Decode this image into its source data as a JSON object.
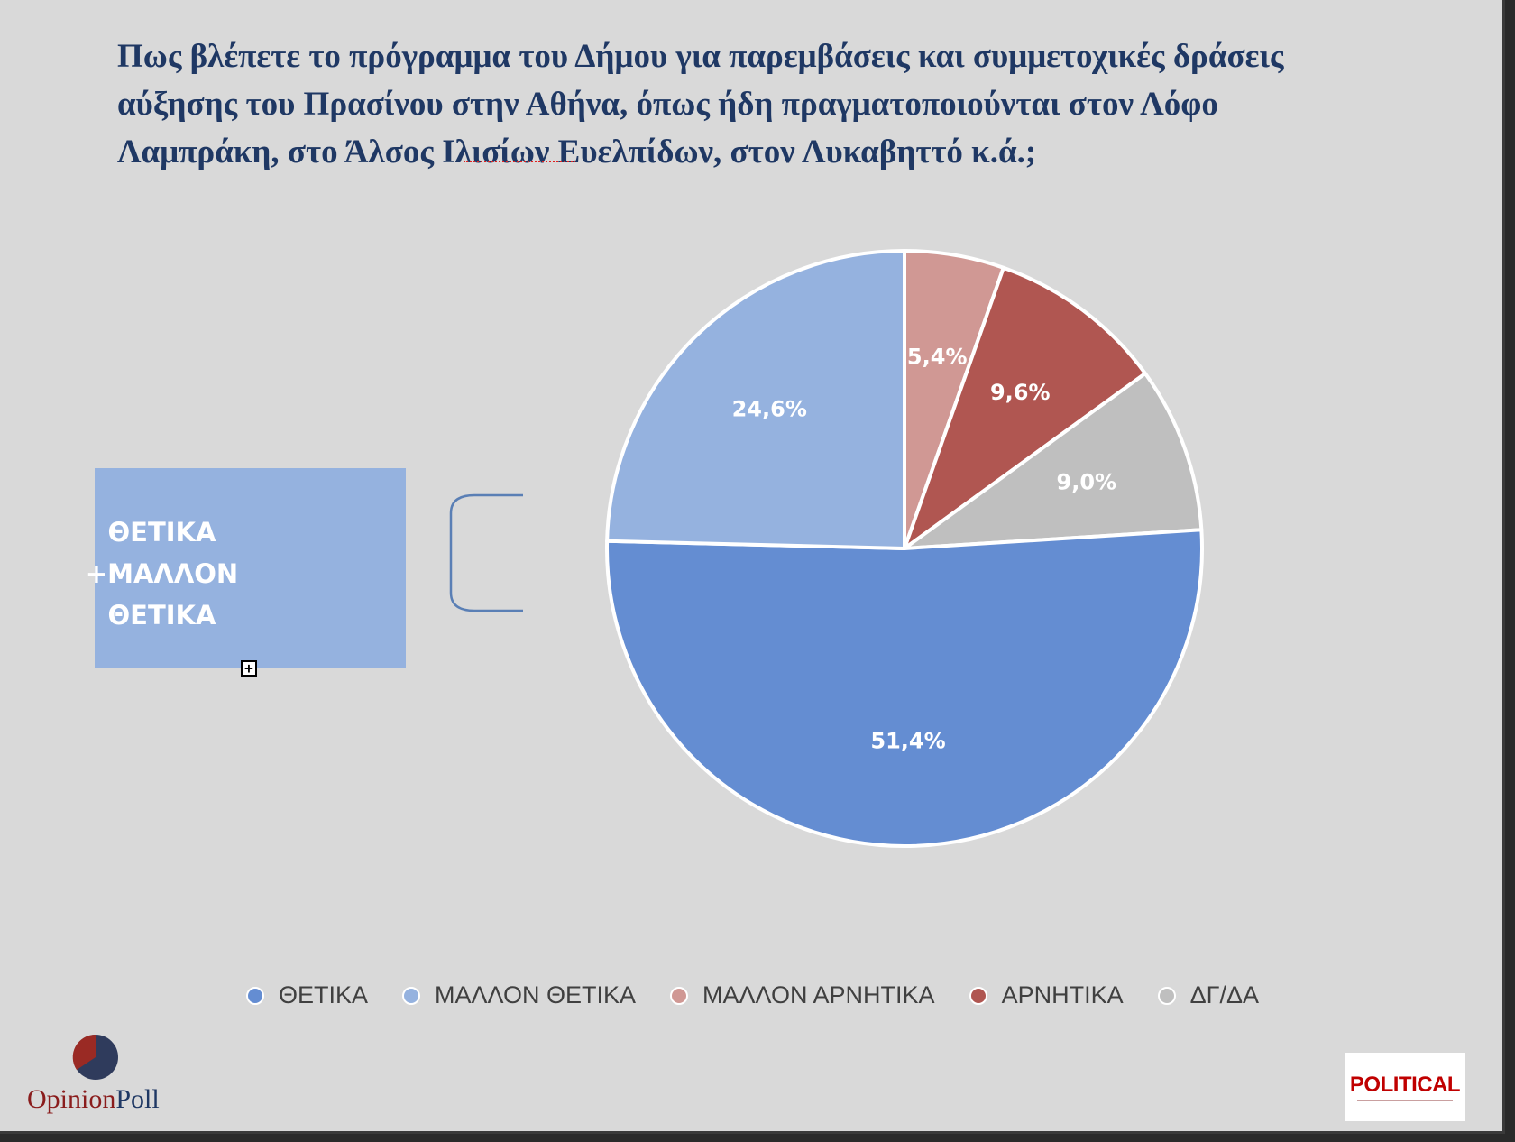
{
  "title": "Πως βλέπετε το πρόγραμμα του Δήμου για παρεμβάσεις και συμμετοχικές δράσεις\nαύξησης του Πρασίνου στην Αθήνα, όπως ήδη πραγματοποιούνται στον Λόφο\nΛαμπράκη, στο Άλσος Ιλισίων Ευελπίδων, στον Λυκαβηττό κ.ά.;",
  "callout": {
    "bullet": "•",
    "text": "ΘΕΤΙΚΑ\n+ΜΑΛΛΟΝ\nΘΕΤΙΚΑ"
  },
  "logos": {
    "opinion": "Opinion",
    "poll": "Poll",
    "political": "POLITICAL"
  },
  "chart_data": {
    "type": "pie",
    "title": "Πως βλέπετε το πρόγραμμα του Δήμου για παρεμβάσεις και συμμετοχικές δράσεις αύξησης του Πρασίνου στην Αθήνα, όπως ήδη πραγματοποιούνται στον Λόφο Λαμπράκη, στο Άλσος Ιλισίων Ευελπίδων, στον Λυκαβηττό κ.ά.;",
    "start_angle_deg": 0,
    "direction": "clockwise",
    "legend_position": "bottom",
    "slices": [
      {
        "label": "ΜΑΛΛΟΝ ΑΡΝΗΤΙΚΑ",
        "value": 5.4,
        "display": "5,4%",
        "color": "#d09894"
      },
      {
        "label": "ΑΡΝΗΤΙΚΑ",
        "value": 9.6,
        "display": "9,6%",
        "color": "#b05651"
      },
      {
        "label": "ΔΓ/ΔΑ",
        "value": 9.0,
        "display": "9,0%",
        "color": "#bfbfbf"
      },
      {
        "label": "ΘΕΤΙΚΑ",
        "value": 51.4,
        "display": "51,4%",
        "color": "#648dd2"
      },
      {
        "label": "ΜΑΛΛΟΝ ΘΕΤΙΚΑ",
        "value": 24.6,
        "display": "24,6%",
        "color": "#95b2df"
      }
    ],
    "legend": [
      {
        "label": "ΘΕΤΙΚΑ",
        "color": "#648dd2"
      },
      {
        "label": "ΜΑΛΛΟΝ ΘΕΤΙΚΑ",
        "color": "#95b2df"
      },
      {
        "label": "ΜΑΛΛΟΝ ΑΡΝΗΤΙΚΑ",
        "color": "#d09894"
      },
      {
        "label": "ΑΡΝΗΤΙΚΑ",
        "color": "#b05651"
      },
      {
        "label": "ΔΓ/ΔΑ",
        "color": "#bfbfbf"
      }
    ]
  }
}
